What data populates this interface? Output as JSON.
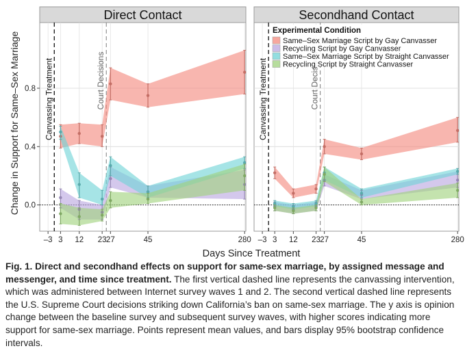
{
  "figure": {
    "y_axis_label": "Change in Support for Same–Sex Marriage",
    "x_axis_label": "Days Since Treatment"
  },
  "caption": {
    "label": "Fig. 1.",
    "title": "Direct and secondhand effects on support for same-sex marriage, by assigned message and messenger, and time since treatment.",
    "body": "The first vertical dashed line represents the canvassing intervention, which was administered between Internet survey waves 1 and 2. The second vertical dashed line represents the U.S. Supreme Court decisions striking down California’s ban on same-sex marriage. The y axis is opinion change between the baseline survey and subsequent survey waves, with higher scores indicating more support for same-sex marriage. Points represent mean values, and bars display 95% bootstrap confidence intervals."
  },
  "colors": {
    "same_sex_gay": "#f4897e",
    "recycling_gay": "#b9a6e0",
    "same_sex_straight": "#6fd3d6",
    "recycling_straight": "#9fd27c",
    "panel_header": "#d9d9d9"
  },
  "chart_data": [
    {
      "type": "line",
      "title": "Direct Contact",
      "xlabel": "Days Since Treatment",
      "ylabel": "Change in Support for Same–Sex Marriage",
      "x_ticks": [
        -3,
        3,
        12,
        23,
        27,
        45,
        280
      ],
      "x_tick_labels": [
        "–3",
        "3",
        "12",
        "23",
        "27",
        "45",
        "280"
      ],
      "y_ticks": [
        0.0,
        0.4,
        0.8
      ],
      "y_tick_labels": [
        "0.0",
        "0.4",
        "0.8"
      ],
      "ylim": [
        -0.18,
        1.25
      ],
      "grid": true,
      "annotations": [
        {
          "text": "Canvassing Treatment",
          "x": 0
        },
        {
          "text": "Court Decisions",
          "x": 25
        }
      ],
      "x": [
        3,
        12,
        23,
        27,
        45,
        280
      ],
      "series": [
        {
          "name": "Same–Sex Marriage Script by Gay Canvasser",
          "color_key": "same_sex_gay",
          "values": [
            0.47,
            0.49,
            0.47,
            0.83,
            0.75,
            0.91
          ],
          "lower": [
            0.39,
            0.42,
            0.4,
            0.72,
            0.67,
            0.76
          ],
          "upper": [
            0.55,
            0.56,
            0.55,
            0.94,
            0.83,
            1.06
          ]
        },
        {
          "name": "Recycling Script by Gay Canvasser",
          "color_key": "recycling_gay",
          "values": [
            0.05,
            -0.03,
            -0.05,
            0.18,
            0.09,
            0.14
          ],
          "lower": [
            -0.02,
            -0.1,
            -0.1,
            0.12,
            0.05,
            0.04
          ],
          "upper": [
            0.11,
            0.03,
            0.0,
            0.26,
            0.13,
            0.24
          ]
        },
        {
          "name": "Same–Sex Marriage Script by Straight Canvasser",
          "color_key": "same_sex_straight",
          "values": [
            0.5,
            0.14,
            0.04,
            0.27,
            0.09,
            0.29
          ],
          "lower": [
            0.45,
            0.05,
            0.0,
            0.2,
            0.05,
            0.25
          ],
          "upper": [
            0.54,
            0.22,
            0.1,
            0.33,
            0.13,
            0.33
          ]
        },
        {
          "name": "Recycling Script by Straight Canvasser",
          "color_key": "recycling_straight",
          "values": [
            -0.06,
            -0.08,
            -0.07,
            0.03,
            0.04,
            0.2
          ],
          "lower": [
            -0.13,
            -0.14,
            -0.11,
            -0.02,
            0.01,
            0.1
          ],
          "upper": [
            0.01,
            -0.02,
            -0.03,
            0.09,
            0.08,
            0.28
          ]
        }
      ]
    },
    {
      "type": "line",
      "title": "Secondhand Contact",
      "xlabel": "Days Since Treatment",
      "ylabel": "",
      "x_ticks": [
        -3,
        3,
        12,
        23,
        27,
        45,
        280
      ],
      "x_tick_labels": [
        "–3",
        "3",
        "12",
        "23",
        "27",
        "45",
        "280"
      ],
      "ylim": [
        -0.18,
        1.25
      ],
      "grid": true,
      "legend": {
        "title": "Experimental Condition",
        "position": "top-right",
        "entries": [
          "Same–Sex Marriage Script by Gay Canvasser",
          "Recycling Script by Gay Canvasser",
          "Same–Sex Marriage Script by Straight Canvasser",
          "Recycling Script by Straight Canvasser"
        ]
      },
      "annotations": [
        {
          "text": "Canvassing Treatment",
          "x": 0
        },
        {
          "text": "Court Decisions",
          "x": 25
        }
      ],
      "x": [
        3,
        12,
        23,
        27,
        45,
        280
      ],
      "series": [
        {
          "name": "Same–Sex Marriage Script by Gay Canvasser",
          "color_key": "same_sex_gay",
          "values": [
            0.22,
            0.08,
            0.11,
            0.4,
            0.35,
            0.51
          ],
          "lower": [
            0.18,
            0.05,
            0.08,
            0.35,
            0.31,
            0.43
          ],
          "upper": [
            0.26,
            0.11,
            0.14,
            0.45,
            0.39,
            0.6
          ]
        },
        {
          "name": "Recycling Script by Gay Canvasser",
          "color_key": "recycling_gay",
          "values": [
            -0.01,
            -0.03,
            -0.01,
            0.17,
            0.07,
            0.17
          ],
          "lower": [
            -0.04,
            -0.06,
            -0.04,
            0.13,
            0.04,
            0.12
          ],
          "upper": [
            0.02,
            0.0,
            0.02,
            0.21,
            0.1,
            0.23
          ]
        },
        {
          "name": "Same–Sex Marriage Script by Straight Canvasser",
          "color_key": "same_sex_straight",
          "values": [
            0.01,
            -0.01,
            0.01,
            0.22,
            0.08,
            0.23
          ],
          "lower": [
            -0.01,
            -0.03,
            -0.01,
            0.17,
            0.05,
            0.21
          ],
          "upper": [
            0.03,
            0.01,
            0.03,
            0.26,
            0.11,
            0.25
          ]
        },
        {
          "name": "Recycling Script by Straight Canvasser",
          "color_key": "recycling_straight",
          "values": [
            -0.02,
            -0.04,
            -0.02,
            0.21,
            0.02,
            0.1
          ],
          "lower": [
            -0.04,
            -0.06,
            -0.04,
            0.16,
            0.0,
            0.05
          ],
          "upper": [
            0.0,
            -0.02,
            0.0,
            0.26,
            0.04,
            0.15
          ]
        }
      ]
    }
  ]
}
